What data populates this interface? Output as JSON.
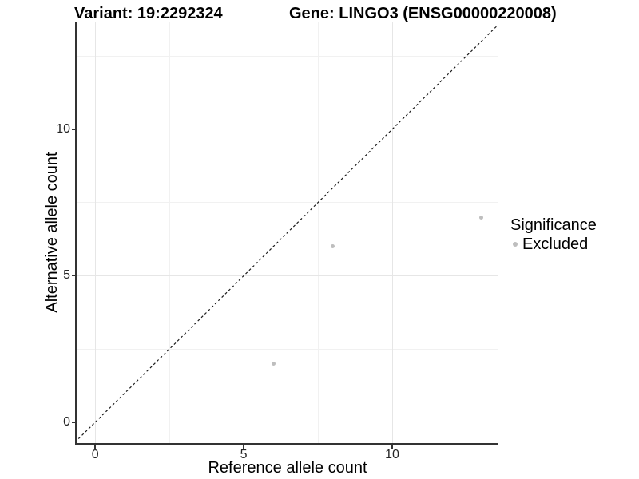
{
  "header": {
    "variant_title": "Variant: 19:2292324",
    "gene_title": "Gene: LINGO3 (ENSG00000220008)"
  },
  "chart_data": {
    "type": "scatter",
    "xlabel": "Reference allele count",
    "ylabel": "Alternative allele count",
    "xlim": [
      -0.65,
      13.55
    ],
    "ylim": [
      -0.71,
      13.65
    ],
    "x_ticks": [
      0,
      5,
      10
    ],
    "x_tick_labels": [
      "0",
      "5",
      "10"
    ],
    "y_ticks": [
      0,
      5,
      10
    ],
    "y_tick_labels": [
      "0",
      "5",
      "10"
    ],
    "x_minor_ticks": [
      2.5,
      7.5,
      12.5
    ],
    "y_minor_ticks": [
      2.5,
      7.5,
      12.5
    ],
    "grid": "on",
    "series": [
      {
        "name": "Excluded",
        "color": "#bebebe",
        "points": [
          [
            6,
            2
          ],
          [
            8,
            6
          ],
          [
            13,
            7
          ]
        ]
      }
    ],
    "identity_line": {
      "slope": 1,
      "intercept": 0,
      "style": "dashed",
      "color": "#1a1a1a"
    },
    "legend": {
      "title": "Significance",
      "position": "right",
      "entries": [
        {
          "label": "Excluded",
          "color": "#bebebe"
        }
      ]
    }
  },
  "colors": {
    "background": "#ffffff",
    "grid_major": "#e6e6e6",
    "grid_minor": "#f1f1f1",
    "axis_line": "#333333",
    "tick_text": "#262626",
    "point": "#bebebe"
  }
}
